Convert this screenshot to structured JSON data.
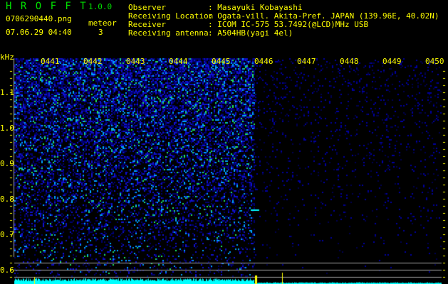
{
  "header": {
    "app_title": "H R O F F T",
    "version": "1.0.0",
    "filename": "0706290440.png",
    "datetime": "07.06.29 04:40",
    "meteor_label": "meteor",
    "meteor_count": "3",
    "info": [
      {
        "label": "Observer",
        "value": ": Masayuki Kobayashi"
      },
      {
        "label": "Receiving Location",
        "value": ": Ogata-vill. Akita-Pref. JAPAN (139.96E, 40.02N)"
      },
      {
        "label": "Receiver",
        "value": ": ICOM IC-575 53.7492(@LCD)MHz USB"
      },
      {
        "label": "Receiving antenna",
        "value": ": A504HB(yagi 4el)"
      }
    ]
  },
  "chart_data": {
    "type": "heatmap",
    "ylabel": "kHz",
    "y_ticks": [
      "1.1",
      "1.0",
      "0.9",
      "0.8",
      "0.7",
      "0.6"
    ],
    "ylim": [
      0.56,
      1.18
    ],
    "x_ticks": [
      "0441",
      "0442",
      "0443",
      "0444",
      "0445",
      "0446",
      "0447",
      "0448",
      "0449",
      "0450"
    ],
    "colors": {
      "text": "#ffff00",
      "title": "#00e000",
      "signal_low": "#0000c0",
      "signal_high": "#00ff00",
      "baseline": "#00ffff",
      "reference_lines": "#a0a0a0"
    },
    "meteor_echo_freq_khz": 0.77,
    "reference_lines_khz": [
      0.62,
      0.6,
      0.58
    ]
  }
}
